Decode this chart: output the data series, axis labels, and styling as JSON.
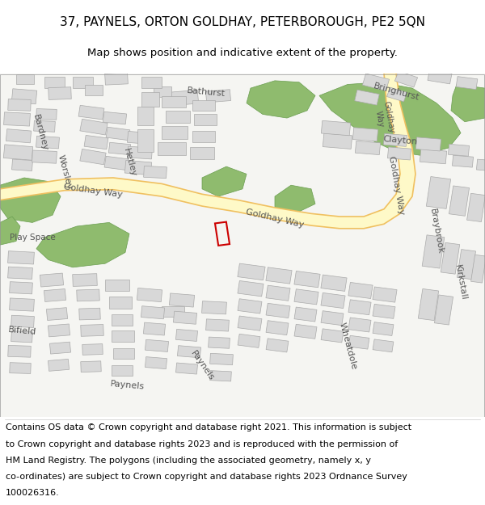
{
  "title_line1": "37, PAYNELS, ORTON GOLDHAY, PETERBOROUGH, PE2 5QN",
  "title_line2": "Map shows position and indicative extent of the property.",
  "title_fontsize": 11,
  "subtitle_fontsize": 9.5,
  "footer_text": "Contains OS data © Crown copyright and database right 2021. This information is subject to Crown copyright and database rights 2023 and is reproduced with the permission of HM Land Registry. The polygons (including the associated geometry, namely x, y co-ordinates) are subject to Crown copyright and database rights 2023 Ordnance Survey 100026316.",
  "footer_fontsize": 8,
  "bg_color": "#f5f4f0",
  "road_main_fill": "#fef9c8",
  "road_main_stroke": "#f0c060",
  "road_minor_color": "#ffffff",
  "road_minor_stroke": "#c8c8c8",
  "building_fill": "#d8d8d8",
  "building_stroke": "#aaaaaa",
  "green_fill": "#8fbb6e",
  "green_stroke": "#6a9e50",
  "red_box_color": "#cc0000",
  "map_bg": "#f5f5f2"
}
